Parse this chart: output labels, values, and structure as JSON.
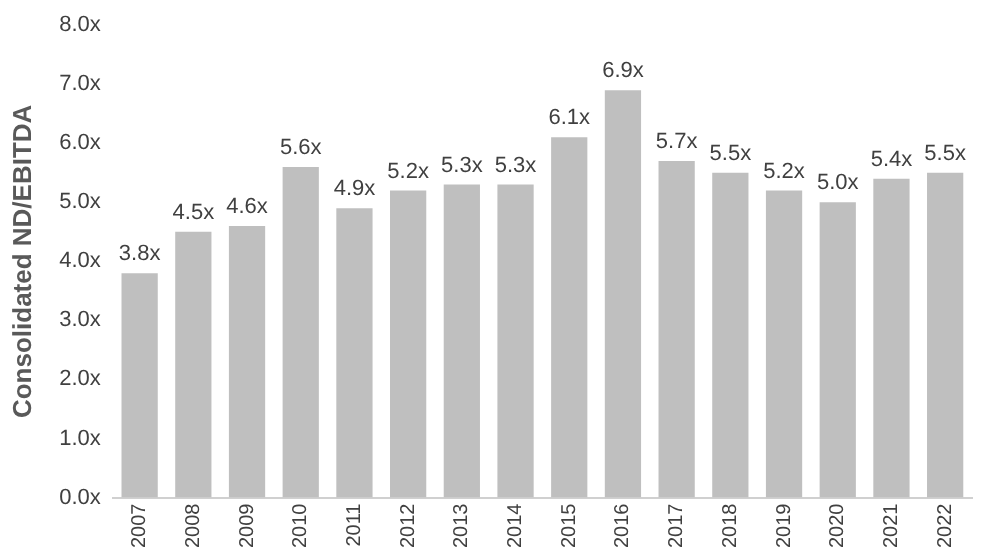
{
  "chart_data": {
    "type": "bar",
    "ylabel": "Consolidated ND/EBITDA",
    "categories": [
      "2007",
      "2008",
      "2009",
      "2010",
      "2011",
      "2012",
      "2013",
      "2014",
      "2015",
      "2016",
      "2017",
      "2018",
      "2019",
      "2020",
      "2021",
      "2022"
    ],
    "values": [
      3.8,
      4.5,
      4.6,
      5.6,
      4.9,
      5.2,
      5.3,
      5.3,
      6.1,
      6.9,
      5.7,
      5.5,
      5.2,
      5.0,
      5.4,
      5.5
    ],
    "value_labels": [
      "3.8x",
      "4.5x",
      "4.6x",
      "5.6x",
      "4.9x",
      "5.2x",
      "5.3x",
      "5.3x",
      "6.1x",
      "6.9x",
      "5.7x",
      "5.5x",
      "5.2x",
      "5.0x",
      "5.4x",
      "5.5x"
    ],
    "color": "#bfbfbf",
    "ylim": [
      0,
      8
    ],
    "yticks": [
      {
        "value": 0,
        "label": "0.0x"
      },
      {
        "value": 1,
        "label": "1.0x"
      },
      {
        "value": 2,
        "label": "2.0x"
      },
      {
        "value": 3,
        "label": "3.0x"
      },
      {
        "value": 4,
        "label": "4.0x"
      },
      {
        "value": 5,
        "label": "5.0x"
      },
      {
        "value": 6,
        "label": "6.0x"
      },
      {
        "value": 7,
        "label": "7.0x"
      },
      {
        "value": 8,
        "label": "8.0x"
      }
    ],
    "grid": false,
    "legend": false
  }
}
